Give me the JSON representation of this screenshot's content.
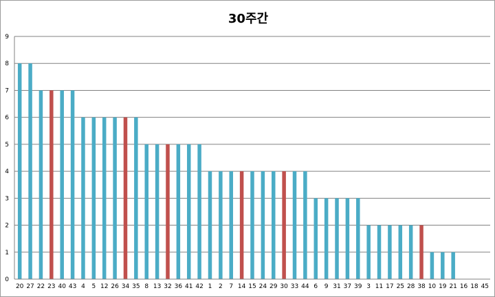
{
  "chart_data": {
    "type": "bar",
    "title": "30주간",
    "xlabel": "",
    "ylabel": "",
    "ylim": [
      0,
      9
    ],
    "yticks": [
      0,
      1,
      2,
      3,
      4,
      5,
      6,
      7,
      8,
      9
    ],
    "grid": true,
    "legend": "none",
    "colors": {
      "default": "#4bacc6",
      "highlight": "#c0504d",
      "grid": "#808080",
      "axis": "#808080"
    },
    "categories": [
      "20",
      "27",
      "22",
      "23",
      "40",
      "43",
      "4",
      "5",
      "12",
      "26",
      "34",
      "35",
      "8",
      "13",
      "32",
      "36",
      "41",
      "42",
      "1",
      "2",
      "7",
      "14",
      "15",
      "24",
      "29",
      "30",
      "33",
      "44",
      "6",
      "9",
      "31",
      "37",
      "39",
      "3",
      "11",
      "17",
      "25",
      "28",
      "38",
      "10",
      "19",
      "21",
      "16",
      "18",
      "45"
    ],
    "values": [
      8,
      8,
      7,
      7,
      7,
      7,
      6,
      6,
      6,
      6,
      6,
      6,
      5,
      5,
      5,
      5,
      5,
      5,
      4,
      4,
      4,
      4,
      4,
      4,
      4,
      4,
      4,
      4,
      3,
      3,
      3,
      3,
      3,
      2,
      2,
      2,
      2,
      2,
      2,
      1,
      1,
      1,
      0,
      0,
      0
    ],
    "highlighted": [
      "23",
      "34",
      "32",
      "14",
      "30",
      "38"
    ]
  }
}
